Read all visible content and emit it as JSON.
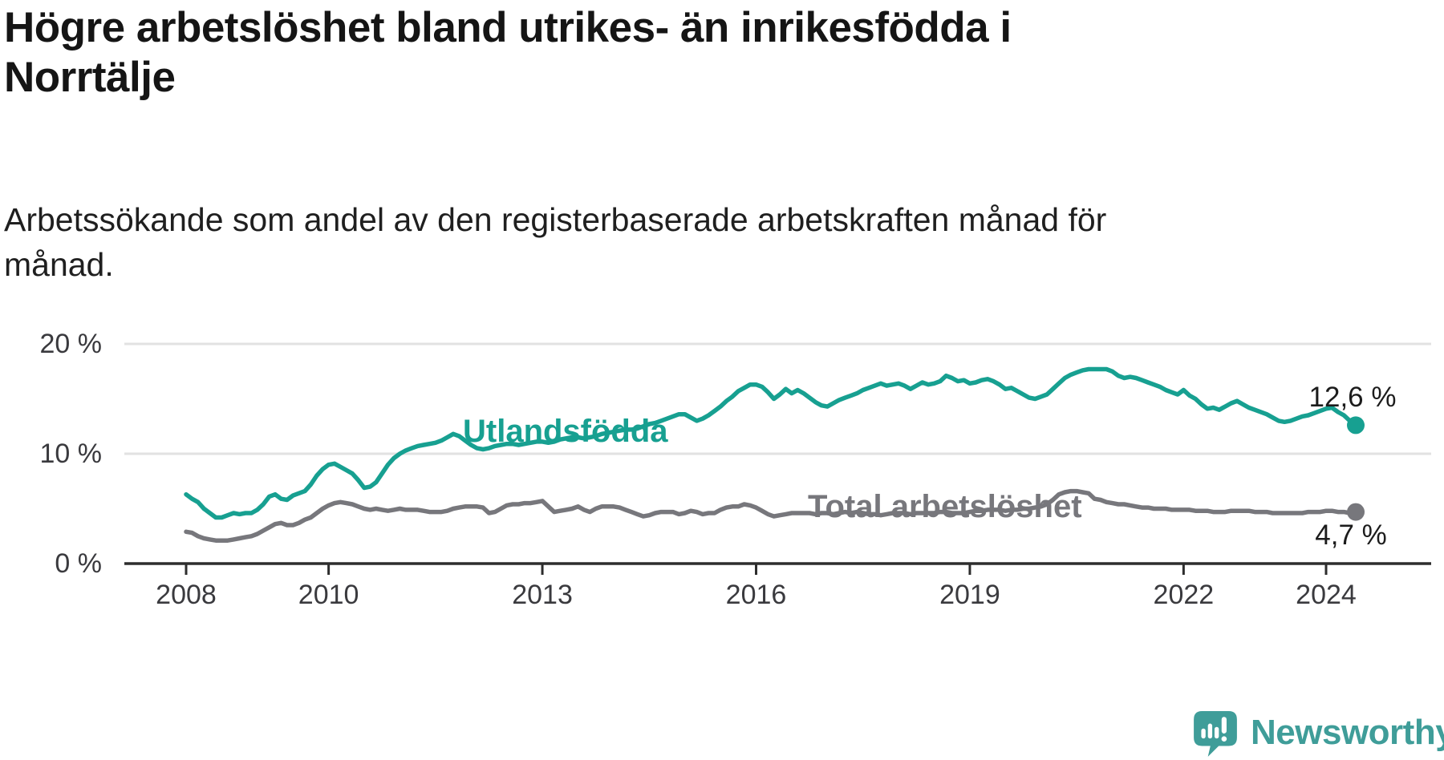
{
  "header": {
    "title_line1": "Högre arbetslöshet bland utrikes- än inrikesfödda i",
    "title_line2": "Norrtälje",
    "subtitle_line1": "Arbetssökande som andel av den registerbaserade arbetskraften månad för",
    "subtitle_line2": "månad."
  },
  "branding": {
    "logo_text": "Newsworthy",
    "logo_icon": "newsworthy-speech-bubble-bar-chart-icon",
    "logo_color": "#3f9d99"
  },
  "colors": {
    "foreign_born_line": "#17a091",
    "total_line": "#77777c",
    "gridline": "#e2e2e2",
    "axis": "#2d2d2d",
    "tick_text": "#3a3a3e",
    "value_text": "#1c1c1c"
  },
  "chart_data": {
    "type": "line",
    "title": "Högre arbetslöshet bland utrikes- än inrikesfödda i Norrtälje",
    "subtitle": "Arbetssökande som andel av den registerbaserade arbetskraften månad för månad.",
    "xlabel": "",
    "ylabel": "",
    "x_unit": "monthly",
    "x_start": "2008-01",
    "x_end": "2024-06",
    "ylim": [
      0,
      20
    ],
    "grid": "horizontal",
    "legend_position": "inline-labels",
    "y_ticks": [
      {
        "value": 0,
        "label": "0 %"
      },
      {
        "value": 10,
        "label": "10 %"
      },
      {
        "value": 20,
        "label": "20 %"
      }
    ],
    "x_ticks": [
      {
        "year": 2008,
        "label": "2008"
      },
      {
        "year": 2010,
        "label": "2010"
      },
      {
        "year": 2013,
        "label": "2013"
      },
      {
        "year": 2016,
        "label": "2016"
      },
      {
        "year": 2019,
        "label": "2019"
      },
      {
        "year": 2022,
        "label": "2022"
      },
      {
        "year": 2024,
        "label": "2024"
      }
    ],
    "series": [
      {
        "name": "Total arbetslöshet",
        "color": "#77777c",
        "end_label": "4,7 %",
        "last_value": 4.7,
        "values": [
          2.9,
          2.8,
          2.5,
          2.3,
          2.2,
          2.1,
          2.1,
          2.1,
          2.2,
          2.3,
          2.4,
          2.5,
          2.7,
          3.0,
          3.3,
          3.6,
          3.7,
          3.5,
          3.5,
          3.7,
          4.0,
          4.2,
          4.6,
          5.0,
          5.3,
          5.5,
          5.6,
          5.5,
          5.4,
          5.2,
          5.0,
          4.9,
          5.0,
          4.9,
          4.8,
          4.9,
          5.0,
          4.9,
          4.9,
          4.9,
          4.8,
          4.7,
          4.7,
          4.7,
          4.8,
          5.0,
          5.1,
          5.2,
          5.2,
          5.2,
          5.1,
          4.6,
          4.7,
          5.0,
          5.3,
          5.4,
          5.4,
          5.5,
          5.5,
          5.6,
          5.7,
          5.2,
          4.7,
          4.8,
          4.9,
          5.0,
          5.2,
          4.9,
          4.7,
          5.0,
          5.2,
          5.2,
          5.2,
          5.1,
          4.9,
          4.7,
          4.5,
          4.3,
          4.4,
          4.6,
          4.7,
          4.7,
          4.7,
          4.5,
          4.6,
          4.8,
          4.7,
          4.5,
          4.6,
          4.6,
          4.9,
          5.1,
          5.2,
          5.2,
          5.4,
          5.3,
          5.1,
          4.8,
          4.5,
          4.3,
          4.4,
          4.5,
          4.6,
          4.6,
          4.6,
          4.6,
          4.5,
          4.6,
          4.6,
          4.5,
          4.6,
          4.7,
          4.6,
          4.7,
          4.6,
          4.5,
          4.5,
          4.4,
          4.5,
          4.6,
          4.6,
          4.6,
          4.5,
          4.6,
          4.6,
          4.6,
          4.6,
          4.7,
          4.7,
          4.6,
          4.6,
          4.6,
          4.7,
          4.8,
          4.8,
          4.9,
          4.9,
          4.9,
          4.8,
          4.9,
          4.9,
          5.0,
          5.0,
          5.1,
          5.2,
          5.4,
          5.8,
          6.3,
          6.5,
          6.6,
          6.6,
          6.5,
          6.4,
          5.9,
          5.8,
          5.6,
          5.5,
          5.4,
          5.4,
          5.3,
          5.2,
          5.1,
          5.1,
          5.0,
          5.0,
          5.0,
          4.9,
          4.9,
          4.9,
          4.9,
          4.8,
          4.8,
          4.8,
          4.7,
          4.7,
          4.7,
          4.8,
          4.8,
          4.8,
          4.8,
          4.7,
          4.7,
          4.7,
          4.6,
          4.6,
          4.6,
          4.6,
          4.6,
          4.6,
          4.7,
          4.7,
          4.7,
          4.8,
          4.8,
          4.7,
          4.7,
          4.6,
          4.7
        ]
      },
      {
        "name": "Utlandsfödda",
        "color": "#17a091",
        "end_label": "12,6 %",
        "last_value": 12.6,
        "values": [
          6.3,
          5.9,
          5.6,
          5.0,
          4.6,
          4.2,
          4.2,
          4.4,
          4.6,
          4.5,
          4.6,
          4.6,
          4.9,
          5.4,
          6.1,
          6.3,
          5.9,
          5.8,
          6.2,
          6.4,
          6.6,
          7.2,
          8.0,
          8.6,
          9.0,
          9.1,
          8.8,
          8.5,
          8.2,
          7.6,
          6.9,
          7.0,
          7.4,
          8.2,
          9.0,
          9.6,
          10.0,
          10.3,
          10.5,
          10.7,
          10.8,
          10.9,
          11.0,
          11.2,
          11.5,
          11.8,
          11.6,
          11.2,
          10.8,
          10.5,
          10.4,
          10.5,
          10.7,
          10.8,
          10.9,
          10.9,
          10.8,
          10.9,
          11.0,
          11.1,
          11.1,
          11.0,
          11.1,
          11.3,
          11.4,
          11.5,
          11.5,
          11.4,
          11.5,
          11.6,
          11.8,
          11.9,
          12.0,
          12.1,
          12.2,
          12.2,
          12.3,
          12.5,
          12.7,
          12.8,
          13.0,
          13.2,
          13.4,
          13.6,
          13.6,
          13.3,
          13.0,
          13.2,
          13.5,
          13.9,
          14.3,
          14.8,
          15.2,
          15.7,
          16.0,
          16.3,
          16.3,
          16.1,
          15.6,
          15.0,
          15.4,
          15.9,
          15.5,
          15.8,
          15.5,
          15.1,
          14.7,
          14.4,
          14.3,
          14.6,
          14.9,
          15.1,
          15.3,
          15.5,
          15.8,
          16.0,
          16.2,
          16.4,
          16.2,
          16.3,
          16.4,
          16.2,
          15.9,
          16.2,
          16.5,
          16.3,
          16.4,
          16.6,
          17.1,
          16.9,
          16.6,
          16.7,
          16.4,
          16.5,
          16.7,
          16.8,
          16.6,
          16.3,
          15.9,
          16.0,
          15.7,
          15.4,
          15.1,
          15.0,
          15.2,
          15.4,
          15.9,
          16.4,
          16.9,
          17.2,
          17.4,
          17.6,
          17.7,
          17.7,
          17.7,
          17.7,
          17.5,
          17.1,
          16.9,
          17.0,
          16.9,
          16.7,
          16.5,
          16.3,
          16.1,
          15.8,
          15.6,
          15.4,
          15.8,
          15.3,
          15.0,
          14.5,
          14.1,
          14.2,
          14.0,
          14.3,
          14.6,
          14.8,
          14.5,
          14.2,
          14.0,
          13.8,
          13.6,
          13.3,
          13.0,
          12.9,
          13.0,
          13.2,
          13.4,
          13.5,
          13.7,
          13.9,
          14.1,
          14.2,
          13.8,
          13.5,
          13.0,
          12.6
        ]
      }
    ]
  }
}
